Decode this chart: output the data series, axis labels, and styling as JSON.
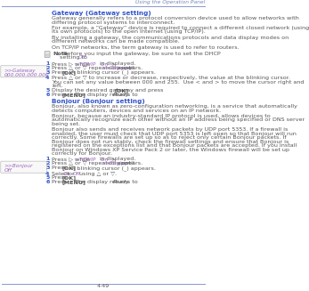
{
  "header_text": "Using the Operation Panel",
  "footer_text": "4-49",
  "header_color": "#7788bb",
  "title1": "Gateway (Gateway setting)",
  "title2": "Bonjour (Bonjour setting)",
  "title_color": "#3355cc",
  "body_color": "#555555",
  "code_color": "#9966bb",
  "bg_color": "#ffffff",
  "line_color": "#8899cc",
  "body1": [
    "Gateway generally refers to a protocol conversion device used to allow networks with differing protocol systems to interconnect.",
    "For example, a “Gateway” device is required to connect a different closed network (using its own protocols) to the open Internet (using TCP/IP).",
    "By installing a gateway, the communications protocols and data display modes on different networks can be made compatible.",
    "On TCP/IP networks, the term gateway is used to refer to routers."
  ],
  "note_bold": "Note",
  "note_rest": "  Before you input the gateway, be sure to set the DHCP setting to Off.",
  "note_code_word": "DHCP",
  "note_italic_word": "Off.",
  "steps1": [
    [
      "1",
      "Press ▷ while ",
      ">TCP/IP   On  >",
      " is displayed."
    ],
    [
      "2",
      "Press △ or ▽ repeatedly until ",
      ">>Gateway",
      " appears."
    ],
    [
      "3",
      "Press ",
      "[OK]",
      ". A blinking cursor (_) appears."
    ]
  ],
  "lcd1_line1": ">>Gateway",
  "lcd1_line2": "000.000.000.000",
  "step4_text": "Press △ or ▽ to increase or decrease, respectively, the value at the blinking cursor.  You can set any value between 000 and 255.  Use < and > to move the cursor right and left.",
  "step5_pre": "Display the desired gateway and press ",
  "step5_bold": "[OK]",
  "step5_post": ".",
  "step6_pre": "Press ",
  "step6_bold": "[MENU]",
  "step6_post": ". The display returns to ",
  "step6_italic": "Ready.",
  "body2": [
    "Bonjour, also known as zero-configuration networking, is a service that automatically detects computers, devices and services on an IP network.",
    "Bonjour, because an industry-standard IP protocol is used, allows devices to automatically recognize each other without an IP address being specified or DNS server being set.",
    "Bonjour also sends and receives network packets by UDP port 5353. If a firewall is enabled, the user must check that UDP port 5353 is left open so that Bonjour will run correctly. Some firewalls are set up so as to reject only certain Bonjour packets. If Bonjour does not run stably, check the firewall settings and ensure that Bonjour is registered on the exceptions list and that Bonjour packets are accepted. If you install Bonjour on Windows XP Service Pack 2 or later, the Windows firewall will be set up correctly for Bonjour."
  ],
  "steps2": [
    [
      "1",
      "Press ▷ while ",
      ">TCP/IP   On  >",
      " is displayed."
    ],
    [
      "2",
      "Press △ or ▽ repeatedly until ",
      ">>Bonjour",
      " appears."
    ],
    [
      "3",
      "Press ",
      "[OK]",
      ". A blinking cursor (_) appears."
    ]
  ],
  "lcd2_line1": ">>Bonjour",
  "lcd2_line2": "Off",
  "step2_4_pre": "Select ",
  "step2_4_code": "On",
  "step2_4_mid": " or ",
  "step2_4_code2": "Off",
  "step2_4_post": " using △ or ▽.",
  "step2_5_pre": "Press ",
  "step2_5_bold": "[OK]",
  "step2_5_post": ".",
  "step2_6_pre": "Press ",
  "step2_6_bold": "[MENU]",
  "step2_6_post": ". The display returns to ",
  "step2_6_italic": "Ready."
}
